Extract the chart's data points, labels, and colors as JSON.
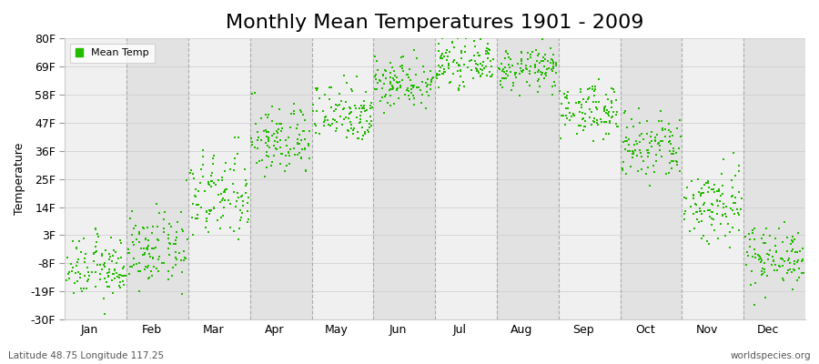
{
  "title": "Monthly Mean Temperatures 1901 - 2009",
  "ylabel": "Temperature",
  "xlabel_bottom_left": "Latitude 48.75 Longitude 117.25",
  "xlabel_bottom_right": "worldspecies.org",
  "legend_label": "Mean Temp",
  "dot_color": "#22bb00",
  "band_color_light": "#f0f0f0",
  "band_color_dark": "#e2e2e2",
  "yticks": [
    -30,
    -19,
    -8,
    3,
    14,
    25,
    36,
    47,
    58,
    69,
    80
  ],
  "ylim": [
    -30,
    80
  ],
  "months": [
    "Jan",
    "Feb",
    "Mar",
    "Apr",
    "May",
    "Jun",
    "Jul",
    "Aug",
    "Sep",
    "Oct",
    "Nov",
    "Dec"
  ],
  "month_mean_temps_F": [
    -10,
    -3,
    18,
    40,
    51,
    63,
    70,
    68,
    52,
    37,
    15,
    -5
  ],
  "month_std_F": [
    6,
    7,
    9,
    7,
    6,
    5,
    4,
    4,
    5,
    7,
    8,
    6
  ],
  "n_years": 109,
  "title_fontsize": 16,
  "axis_fontsize": 9,
  "label_fontsize": 8,
  "dot_size": 3,
  "dashed_line_color": "#aaaaaa",
  "tick_color": "#555555"
}
